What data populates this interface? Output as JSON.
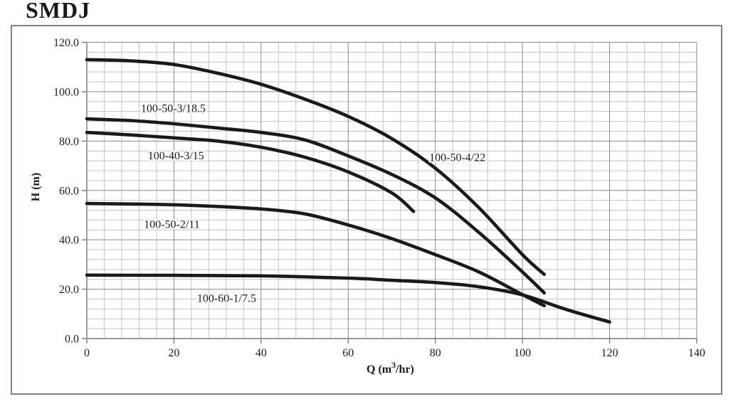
{
  "page_title": "SMDJ",
  "colors": {
    "curve": "#1a1a1a",
    "grid_minor": "#c4c4c4",
    "grid_major": "#8a8a8a",
    "axis_line": "#7a7a7a",
    "frame": "#808080",
    "text": "#1a1a1a",
    "background": "#ffffff"
  },
  "chart_data": {
    "type": "line",
    "title": "SMDJ",
    "xlabel": "Q (m³/hr)",
    "xlabel_parts": {
      "pre": "Q (m",
      "sup": "3",
      "post": "/hr)"
    },
    "ylabel": "H (m)",
    "xlim": [
      0,
      140
    ],
    "ylim": [
      0,
      120
    ],
    "x_major_step": 20,
    "y_major_step": 20,
    "x_minor_step": 4,
    "y_minor_step": 4,
    "grid": true,
    "legend_position": "inline-labels",
    "x_ticks": [
      "0",
      "20",
      "40",
      "60",
      "80",
      "100",
      "120",
      "140"
    ],
    "y_ticks": [
      "0.0",
      "20.0",
      "40.0",
      "60.0",
      "80.0",
      "100.0",
      "120.0"
    ],
    "series": [
      {
        "name": "100-50-4/22",
        "points": [
          [
            0,
            113
          ],
          [
            10,
            112.5
          ],
          [
            20,
            111
          ],
          [
            30,
            107.5
          ],
          [
            40,
            103
          ],
          [
            50,
            97
          ],
          [
            60,
            90
          ],
          [
            70,
            81
          ],
          [
            80,
            69
          ],
          [
            90,
            53
          ],
          [
            100,
            34
          ],
          [
            105,
            26
          ]
        ]
      },
      {
        "name": "100-50-3/18.5",
        "points": [
          [
            0,
            89
          ],
          [
            10,
            88.3
          ],
          [
            20,
            87
          ],
          [
            30,
            85.3
          ],
          [
            40,
            83.5
          ],
          [
            50,
            80.5
          ],
          [
            60,
            74
          ],
          [
            70,
            66.5
          ],
          [
            80,
            57
          ],
          [
            90,
            43
          ],
          [
            100,
            27
          ],
          [
            105,
            18.5
          ]
        ]
      },
      {
        "name": "100-40-3/15",
        "points": [
          [
            0,
            83.5
          ],
          [
            10,
            82.5
          ],
          [
            20,
            81.3
          ],
          [
            30,
            80
          ],
          [
            40,
            77.5
          ],
          [
            50,
            73.5
          ],
          [
            60,
            67.5
          ],
          [
            70,
            59
          ],
          [
            75,
            51.5
          ]
        ]
      },
      {
        "name": "100-50-2/11",
        "points": [
          [
            0,
            54.7
          ],
          [
            10,
            54.5
          ],
          [
            20,
            54.2
          ],
          [
            30,
            53.5
          ],
          [
            40,
            52.5
          ],
          [
            50,
            50.5
          ],
          [
            60,
            46
          ],
          [
            70,
            40.5
          ],
          [
            80,
            34
          ],
          [
            90,
            27
          ],
          [
            100,
            17.8
          ],
          [
            105,
            13.3
          ]
        ]
      },
      {
        "name": "100-60-1/7.5",
        "points": [
          [
            0,
            25.7
          ],
          [
            20,
            25.6
          ],
          [
            40,
            25.4
          ],
          [
            60,
            24.5
          ],
          [
            70,
            23.6
          ],
          [
            80,
            22.7
          ],
          [
            90,
            21
          ],
          [
            100,
            17.7
          ],
          [
            110,
            11.8
          ],
          [
            120,
            6.7
          ]
        ]
      }
    ],
    "labels": [
      {
        "text": "100-50-3/18.5",
        "q": 12.4,
        "h": 93.4
      },
      {
        "text": "100-40-3/15",
        "q": 14.0,
        "h": 74.2
      },
      {
        "text": "100-50-4/22",
        "q": 78.6,
        "h": 73.5
      },
      {
        "text": "100-50-2/11",
        "q": 13.1,
        "h": 46.4
      },
      {
        "text": "100-60-1/7.5",
        "q": 25.3,
        "h": 16.4
      }
    ]
  }
}
